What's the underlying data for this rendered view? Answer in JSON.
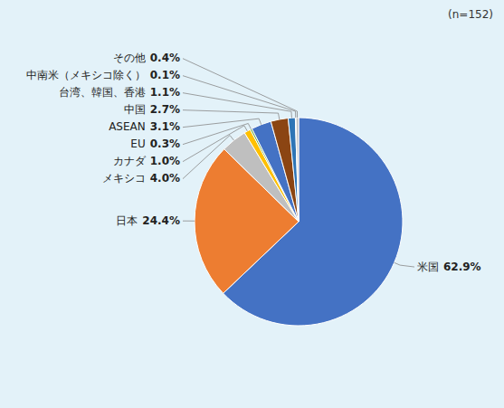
{
  "chart_data": {
    "type": "pie",
    "subtitle": "(n=152)",
    "categories": [
      "米国",
      "日本",
      "メキシコ",
      "カナダ",
      "EU",
      "ASEAN",
      "中国",
      "台湾、韓国、香港",
      "中南米（メキシコ除く）",
      "その他"
    ],
    "values": [
      62.9,
      24.4,
      4.0,
      1.0,
      0.3,
      3.1,
      2.7,
      1.1,
      0.1,
      0.4
    ],
    "value_labels": [
      "62.9%",
      "24.4%",
      "4.0%",
      "1.0%",
      "0.3%",
      "3.1%",
      "2.7%",
      "1.1%",
      "0.1%",
      "0.4%"
    ],
    "colors": [
      "#4472C4",
      "#ED7D31",
      "#BFBFBF",
      "#FFC000",
      "#70AD47",
      "#4472C4",
      "#8B4513",
      "#2E75B6",
      "#BFBFBF",
      "#BFBFBF"
    ],
    "data_labels": true
  }
}
